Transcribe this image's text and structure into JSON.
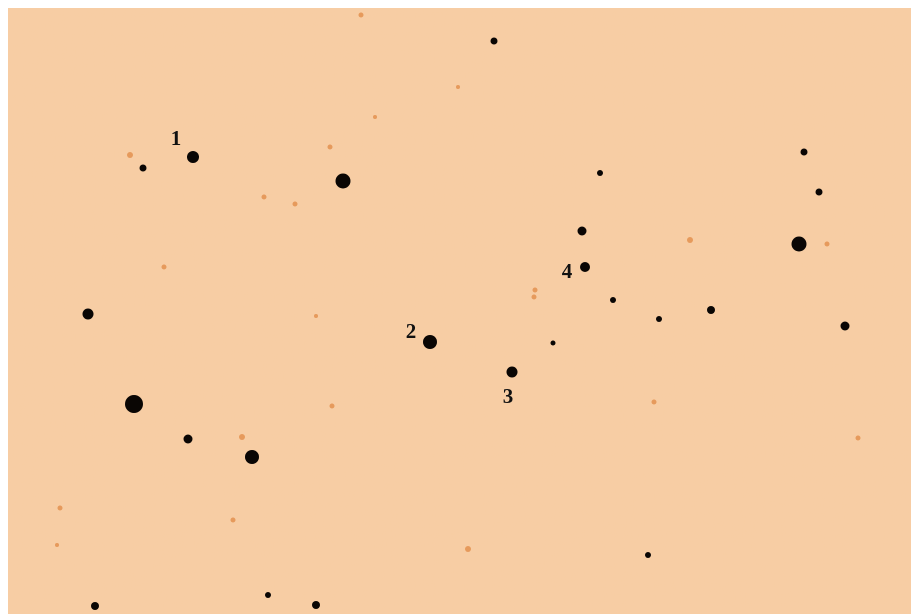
{
  "labels": [
    "1",
    "2",
    "3",
    "4"
  ]
}
